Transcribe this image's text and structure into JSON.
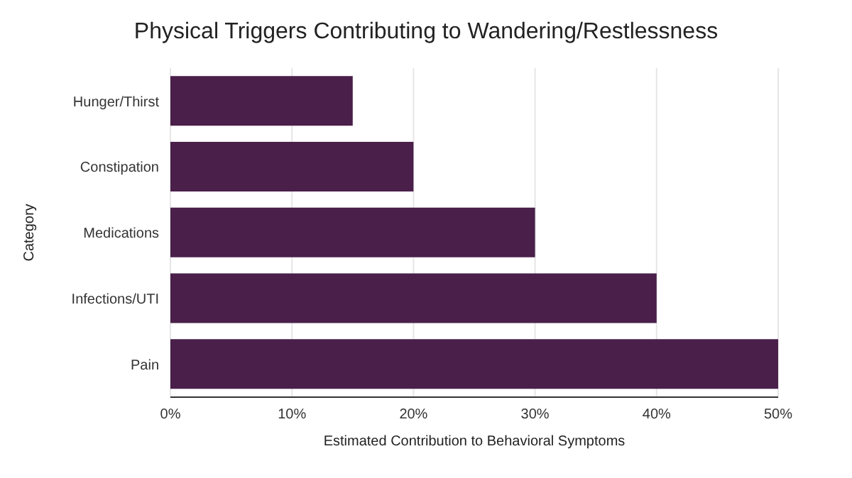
{
  "chart_data": {
    "type": "bar",
    "orientation": "horizontal",
    "title": "Physical Triggers Contributing to Wandering/Restlessness",
    "xlabel": "Estimated Contribution to Behavioral Symptoms",
    "ylabel": "Category",
    "categories": [
      "Hunger/Thirst",
      "Constipation",
      "Medications",
      "Infections/UTI",
      "Pain"
    ],
    "values": [
      15,
      20,
      30,
      40,
      50
    ],
    "color": "#4a1f4a",
    "xlim": [
      0,
      50
    ],
    "xticks": [
      {
        "value": 0,
        "label": "0%"
      },
      {
        "value": 10,
        "label": "10%"
      },
      {
        "value": 20,
        "label": "20%"
      },
      {
        "value": 30,
        "label": "30%"
      },
      {
        "value": 40,
        "label": "40%"
      },
      {
        "value": 50,
        "label": "50%"
      }
    ],
    "grid": "x"
  }
}
